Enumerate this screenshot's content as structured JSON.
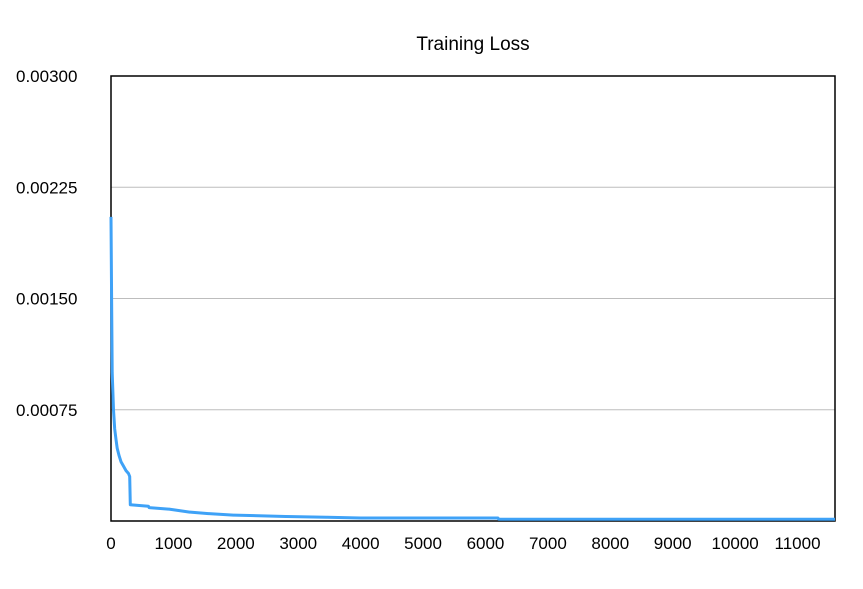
{
  "chart_data": {
    "type": "line",
    "title": "Training Loss",
    "xlabel": "",
    "ylabel": "",
    "xlim": [
      0,
      11600
    ],
    "ylim": [
      0,
      0.003
    ],
    "x_ticks": [
      "0",
      "1000",
      "2000",
      "3000",
      "4000",
      "5000",
      "6000",
      "7000",
      "8000",
      "9000",
      "10000",
      "11000"
    ],
    "y_ticks": [
      "0.00300",
      "0.00225",
      "0.00150",
      "0.00075"
    ],
    "grid": true,
    "legend": "none",
    "colors": {
      "line": "#3fa2f7",
      "grid": "#bdbdbd",
      "frame": "#000000"
    },
    "series": [
      {
        "x": [
          0,
          10,
          20,
          40,
          60,
          80,
          100,
          130,
          160,
          200,
          240,
          280,
          300,
          310,
          600,
          610,
          920,
          930,
          1260,
          1270,
          1560,
          1570,
          1960,
          1970,
          2800,
          2810,
          3450,
          3460,
          4000,
          4010,
          4800,
          6200,
          6210,
          6400,
          6410,
          8000,
          10000,
          11600
        ],
        "y": [
          0.00205,
          0.0015,
          0.001,
          0.00075,
          0.00062,
          0.00055,
          0.00049,
          0.00044,
          0.0004,
          0.00037,
          0.00034,
          0.00032,
          0.0003,
          0.00011,
          0.0001,
          9e-05,
          8e-05,
          8e-05,
          6e-05,
          6e-05,
          5e-05,
          5e-05,
          4e-05,
          4e-05,
          3e-05,
          3e-05,
          2.5e-05,
          2.5e-05,
          2e-05,
          2e-05,
          2e-05,
          2e-05,
          1.2e-05,
          1.2e-05,
          1.2e-05,
          1.2e-05,
          1.2e-05,
          1.2e-05
        ]
      }
    ]
  }
}
